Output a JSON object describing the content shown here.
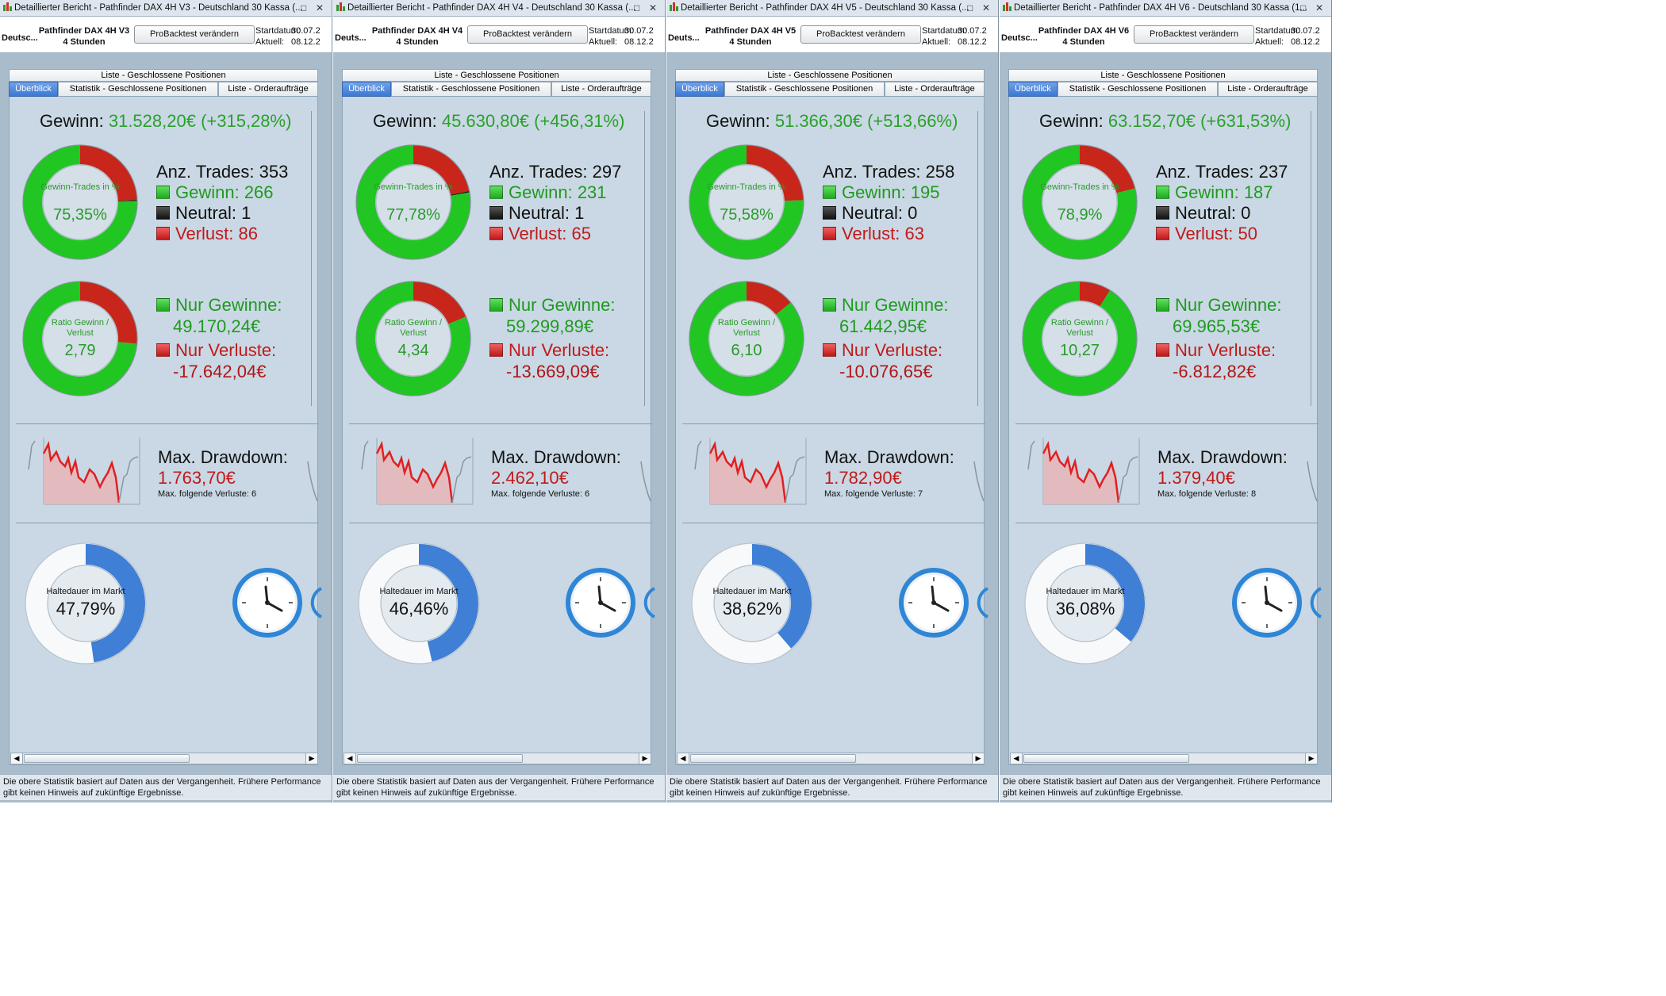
{
  "panels": [
    {
      "window_title": "Detaillierter Bericht - Pathfinder DAX 4H V3 - Deutschland 30 Kassa (...",
      "instrument": "Deutsc...",
      "strategy_name": "Pathfinder DAX 4H V3",
      "timeframe": "4 Stunden",
      "backtest_button": "ProBacktest verändern",
      "start_label": "Startdatum:",
      "start_value": "30.07.2",
      "current_label": "Aktuell:",
      "current_value": "08.12.2",
      "tab_list": "Liste - Geschlossene Positionen",
      "tabs": [
        "Überblick",
        "Statistik - Geschlossene Positionen",
        "Liste - Orderaufträge"
      ],
      "gewinn_label": "Gewinn:",
      "gewinn_value": "31.528,20€ (+315,28%)",
      "trades_ring_label": "Gewinn-Trades in %",
      "trades_ring_value": "75,35%",
      "trades_pct": 75.35,
      "neutral_pct": 0.28,
      "trades_total": "Anz. Trades: 353",
      "wins": "Gewinn: 266",
      "neutral": "Neutral: 1",
      "losses": "Verlust: 86",
      "ratio_ring_label": "Ratio Gewinn / Verlust",
      "ratio_value": "2,79",
      "ratio_pct": 73.6,
      "only_gains_label": "Nur Gewinne:",
      "only_gains_value": "49.170,24€",
      "only_losses_label": "Nur Verluste:",
      "only_losses_value": "-17.642,04€",
      "drawdown_label": "Max. Drawdown:",
      "drawdown_value": "1.763,70€",
      "max_losses": "Max. folgende Verluste: 6",
      "holding_label": "Haltedauer im Markt",
      "holding_value": "47,79%",
      "holding_pct": 47.79,
      "footer_text": "Die obere Statistik basiert auf Daten aus der Vergangenheit. Frühere Performance gibt keinen Hinweis auf zukünftige Ergebnisse."
    },
    {
      "window_title": "Detaillierter Bericht - Pathfinder DAX 4H V4 - Deutschland 30 Kassa (...",
      "instrument": "Deuts...",
      "strategy_name": "Pathfinder DAX 4H V4",
      "timeframe": "4 Stunden",
      "backtest_button": "ProBacktest verändern",
      "start_label": "Startdatum:",
      "start_value": "30.07.2",
      "current_label": "Aktuell:",
      "current_value": "08.12.2",
      "tab_list": "Liste - Geschlossene Positionen",
      "tabs": [
        "Überblick",
        "Statistik - Geschlossene Positionen",
        "Liste - Orderaufträge"
      ],
      "gewinn_label": "Gewinn:",
      "gewinn_value": "45.630,80€ (+456,31%)",
      "trades_ring_label": "Gewinn-Trades in %",
      "trades_ring_value": "77,78%",
      "trades_pct": 77.78,
      "neutral_pct": 0.34,
      "trades_total": "Anz. Trades: 297",
      "wins": "Gewinn: 231",
      "neutral": "Neutral: 1",
      "losses": "Verlust: 65",
      "ratio_ring_label": "Ratio Gewinn / Verlust",
      "ratio_value": "4,34",
      "ratio_pct": 81.3,
      "only_gains_label": "Nur Gewinne:",
      "only_gains_value": "59.299,89€",
      "only_losses_label": "Nur Verluste:",
      "only_losses_value": "-13.669,09€",
      "drawdown_label": "Max. Drawdown:",
      "drawdown_value": "2.462,10€",
      "max_losses": "Max. folgende Verluste: 6",
      "holding_label": "Haltedauer im Markt",
      "holding_value": "46,46%",
      "holding_pct": 46.46,
      "footer_text": "Die obere Statistik basiert auf Daten aus der Vergangenheit. Frühere Performance gibt keinen Hinweis auf zukünftige Ergebnisse."
    },
    {
      "window_title": "Detaillierter Bericht - Pathfinder DAX 4H V5 - Deutschland 30 Kassa (...",
      "instrument": "Deuts...",
      "strategy_name": "Pathfinder DAX 4H V5",
      "timeframe": "4 Stunden",
      "backtest_button": "ProBacktest verändern",
      "start_label": "Startdatum:",
      "start_value": "30.07.2",
      "current_label": "Aktuell:",
      "current_value": "08.12.2",
      "tab_list": "Liste - Geschlossene Positionen",
      "tabs": [
        "Überblick",
        "Statistik - Geschlossene Positionen",
        "Liste - Orderaufträge"
      ],
      "gewinn_label": "Gewinn:",
      "gewinn_value": "51.366,30€ (+513,66%)",
      "trades_ring_label": "Gewinn-Trades in %",
      "trades_ring_value": "75,58%",
      "trades_pct": 75.58,
      "neutral_pct": 0,
      "trades_total": "Anz. Trades: 258",
      "wins": "Gewinn: 195",
      "neutral": "Neutral: 0",
      "losses": "Verlust: 63",
      "ratio_ring_label": "Ratio Gewinn / Verlust",
      "ratio_value": "6,10",
      "ratio_pct": 85.9,
      "only_gains_label": "Nur Gewinne:",
      "only_gains_value": "61.442,95€",
      "only_losses_label": "Nur Verluste:",
      "only_losses_value": "-10.076,65€",
      "drawdown_label": "Max. Drawdown:",
      "drawdown_value": "1.782,90€",
      "max_losses": "Max. folgende Verluste: 7",
      "holding_label": "Haltedauer im Markt",
      "holding_value": "38,62%",
      "holding_pct": 38.62,
      "footer_text": "Die obere Statistik basiert auf Daten aus der Vergangenheit. Frühere Performance gibt keinen Hinweis auf zukünftige Ergebnisse."
    },
    {
      "window_title": "Detaillierter Bericht - Pathfinder DAX 4H V6 - Deutschland 30 Kassa (1...",
      "instrument": "Deutsc...",
      "strategy_name": "Pathfinder DAX 4H V6",
      "timeframe": "4 Stunden",
      "backtest_button": "ProBacktest verändern",
      "start_label": "Startdatum:",
      "start_value": "30.07.2",
      "current_label": "Aktuell:",
      "current_value": "08.12.2",
      "tab_list": "Liste - Geschlossene Positionen",
      "tabs": [
        "Überblick",
        "Statistik - Geschlossene Positionen",
        "Liste - Orderaufträge"
      ],
      "gewinn_label": "Gewinn:",
      "gewinn_value": "63.152,70€ (+631,53%)",
      "trades_ring_label": "Gewinn-Trades in %",
      "trades_ring_value": "78,9%",
      "trades_pct": 78.9,
      "neutral_pct": 0,
      "trades_total": "Anz. Trades: 237",
      "wins": "Gewinn: 187",
      "neutral": "Neutral: 0",
      "losses": "Verlust: 50",
      "ratio_ring_label": "Ratio Gewinn / Verlust",
      "ratio_value": "10,27",
      "ratio_pct": 91.1,
      "only_gains_label": "Nur Gewinne:",
      "only_gains_value": "69.965,53€",
      "only_losses_label": "Nur Verluste:",
      "only_losses_value": "-6.812,82€",
      "drawdown_label": "Max. Drawdown:",
      "drawdown_value": "1.379,40€",
      "max_losses": "Max. folgende Verluste: 8",
      "holding_label": "Haltedauer im Markt",
      "holding_value": "36,08%",
      "holding_pct": 36.08,
      "footer_text": "Die obere Statistik basiert auf Daten aus der Vergangenheit. Frühere Performance gibt keinen Hinweis auf zukünftige Ergebnisse."
    }
  ],
  "colors": {
    "gain": "#2aa12a",
    "loss": "#c01a1a",
    "ring_green": "#22c622",
    "ring_red": "#c8261a",
    "holding_blue": "#3f7fd6",
    "panel_bg": "#c9d8e4",
    "active_tab": "#3b78d4"
  },
  "icons": [
    "window-icon",
    "minimize-icon",
    "close-icon",
    "clock-icon",
    "sparkline-icon",
    "scroll-left-icon",
    "scroll-right-icon"
  ]
}
